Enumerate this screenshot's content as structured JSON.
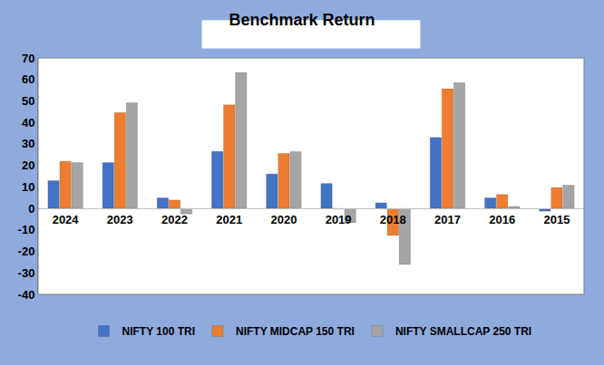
{
  "chart_data": {
    "type": "bar",
    "title": "Benchmark Return",
    "categories": [
      "2024",
      "2023",
      "2022",
      "2021",
      "2020",
      "2019",
      "2018",
      "2017",
      "2016",
      "2015"
    ],
    "series": [
      {
        "name": "NIFTY 100 TRI",
        "color": "#4472c4",
        "values": [
          12.9,
          21.3,
          4.9,
          26.5,
          16.0,
          11.6,
          2.6,
          33.0,
          4.9,
          -1.3
        ]
      },
      {
        "name": "NIFTY MIDCAP 150 TRI",
        "color": "#ed7d31",
        "values": [
          21.9,
          44.6,
          3.9,
          48.2,
          25.6,
          -0.3,
          -12.6,
          55.7,
          6.5,
          9.7
        ]
      },
      {
        "name": "NIFTY SMALLCAP 250 TRI",
        "color": "#a5a5a5",
        "values": [
          21.3,
          49.1,
          -2.6,
          63.3,
          26.4,
          -6.7,
          -26.1,
          58.5,
          0.9,
          10.8
        ]
      }
    ],
    "ylim": [
      -40,
      70
    ],
    "yticks": [
      -40,
      -30,
      -20,
      -10,
      0,
      10,
      20,
      30,
      40,
      50,
      60,
      70
    ],
    "grid": false,
    "legend": "bottom"
  }
}
